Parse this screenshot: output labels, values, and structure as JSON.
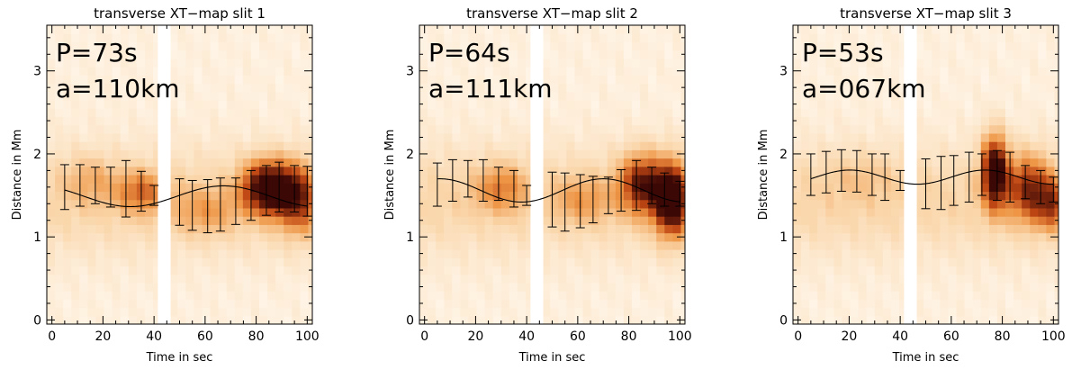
{
  "chart_data": [
    {
      "type": "heatmap",
      "title": "transverse XT−map slit 1",
      "xlabel": "Time in sec",
      "ylabel": "Distance in Mm",
      "xlim": [
        -2,
        102
      ],
      "ylim": [
        -0.05,
        3.55
      ],
      "xticks": [
        0,
        20,
        40,
        60,
        80,
        100
      ],
      "yticks": [
        0,
        1,
        2,
        3
      ],
      "gap": [
        41.5,
        46.5
      ],
      "annotations": [
        "P=73s",
        "a=110km"
      ],
      "fit": {
        "period": 73,
        "amplitude_km": 110,
        "center": 1.49,
        "amp": 0.125,
        "phase": 49
      },
      "errorbars": {
        "x": [
          5,
          11,
          17,
          23,
          29,
          35,
          40,
          50,
          55,
          61,
          66,
          72,
          78,
          84,
          89,
          95,
          100
        ],
        "y": [
          1.6,
          1.62,
          1.62,
          1.6,
          1.58,
          1.55,
          1.5,
          1.42,
          1.38,
          1.37,
          1.39,
          1.43,
          1.5,
          1.56,
          1.6,
          1.58,
          1.55
        ],
        "err": [
          0.27,
          0.25,
          0.22,
          0.24,
          0.34,
          0.24,
          0.12,
          0.28,
          0.3,
          0.32,
          0.32,
          0.28,
          0.3,
          0.3,
          0.3,
          0.28,
          0.3
        ]
      },
      "blobs": [
        {
          "t": 85,
          "d": 1.6,
          "st": 7,
          "sd": 0.22,
          "a": 1.0
        },
        {
          "t": 97,
          "d": 1.45,
          "st": 6,
          "sd": 0.28,
          "a": 0.55
        },
        {
          "t": 35,
          "d": 1.55,
          "st": 7,
          "sd": 0.18,
          "a": 0.4
        },
        {
          "t": 60,
          "d": 1.3,
          "st": 9,
          "sd": 0.2,
          "a": 0.25
        },
        {
          "t": 15,
          "d": 1.7,
          "st": 7,
          "sd": 0.2,
          "a": 0.2
        }
      ]
    },
    {
      "type": "heatmap",
      "title": "transverse XT−map slit 2",
      "xlabel": "Time in sec",
      "ylabel": "Distance in Mm",
      "xlim": [
        -2,
        102
      ],
      "ylim": [
        -0.05,
        3.55
      ],
      "xticks": [
        0,
        20,
        40,
        60,
        80,
        100
      ],
      "yticks": [
        0,
        1,
        2,
        3
      ],
      "gap": [
        41.5,
        46.5
      ],
      "annotations": [
        "P=64s",
        "a=111km"
      ],
      "fit": {
        "period": 64,
        "amplitude_km": 111,
        "center": 1.56,
        "amp": 0.14,
        "phase": 54
      },
      "errorbars": {
        "x": [
          5,
          11,
          17,
          23,
          29,
          35,
          40,
          50,
          55,
          61,
          66,
          72,
          77,
          83,
          89,
          94,
          100
        ],
        "y": [
          1.63,
          1.68,
          1.7,
          1.68,
          1.64,
          1.58,
          1.5,
          1.45,
          1.42,
          1.43,
          1.45,
          1.5,
          1.56,
          1.62,
          1.62,
          1.57,
          1.52
        ],
        "err": [
          0.26,
          0.25,
          0.22,
          0.25,
          0.2,
          0.22,
          0.12,
          0.33,
          0.35,
          0.32,
          0.28,
          0.22,
          0.25,
          0.3,
          0.22,
          0.2,
          0.15
        ]
      },
      "blobs": [
        {
          "t": 85,
          "d": 1.65,
          "st": 6,
          "sd": 0.25,
          "a": 0.7
        },
        {
          "t": 97,
          "d": 1.45,
          "st": 5,
          "sd": 0.3,
          "a": 1.0
        },
        {
          "t": 30,
          "d": 1.6,
          "st": 7,
          "sd": 0.2,
          "a": 0.35
        },
        {
          "t": 62,
          "d": 1.45,
          "st": 8,
          "sd": 0.2,
          "a": 0.25
        }
      ]
    },
    {
      "type": "heatmap",
      "title": "transverse XT−map slit 3",
      "xlabel": "Time in sec",
      "ylabel": "Distance in Mm",
      "xlim": [
        -2,
        102
      ],
      "ylim": [
        -0.05,
        3.55
      ],
      "xticks": [
        0,
        20,
        40,
        60,
        80,
        100
      ],
      "yticks": [
        0,
        1,
        2,
        3
      ],
      "gap": [
        41.5,
        46.5
      ],
      "annotations": [
        "P=53s",
        "a=067km"
      ],
      "fit": {
        "period": 53,
        "amplitude_km": 67,
        "center": 1.72,
        "amp": 0.085,
        "phase": 7
      },
      "errorbars": {
        "x": [
          5,
          11,
          17,
          23,
          29,
          34,
          40,
          50,
          56,
          61,
          67,
          72,
          78,
          83,
          89,
          95,
          100
        ],
        "y": [
          1.75,
          1.78,
          1.8,
          1.79,
          1.75,
          1.72,
          1.68,
          1.64,
          1.65,
          1.68,
          1.72,
          1.75,
          1.74,
          1.72,
          1.66,
          1.6,
          1.57
        ],
        "err": [
          0.25,
          0.25,
          0.25,
          0.25,
          0.25,
          0.28,
          0.12,
          0.3,
          0.32,
          0.3,
          0.3,
          0.25,
          0.3,
          0.3,
          0.2,
          0.2,
          0.15
        ]
      },
      "blobs": [
        {
          "t": 77,
          "d": 1.8,
          "st": 3.5,
          "sd": 0.3,
          "a": 1.0
        },
        {
          "t": 90,
          "d": 1.6,
          "st": 6,
          "sd": 0.28,
          "a": 0.6
        },
        {
          "t": 100,
          "d": 1.4,
          "st": 5,
          "sd": 0.22,
          "a": 0.5
        },
        {
          "t": 25,
          "d": 1.75,
          "st": 10,
          "sd": 0.2,
          "a": 0.12
        }
      ]
    }
  ]
}
